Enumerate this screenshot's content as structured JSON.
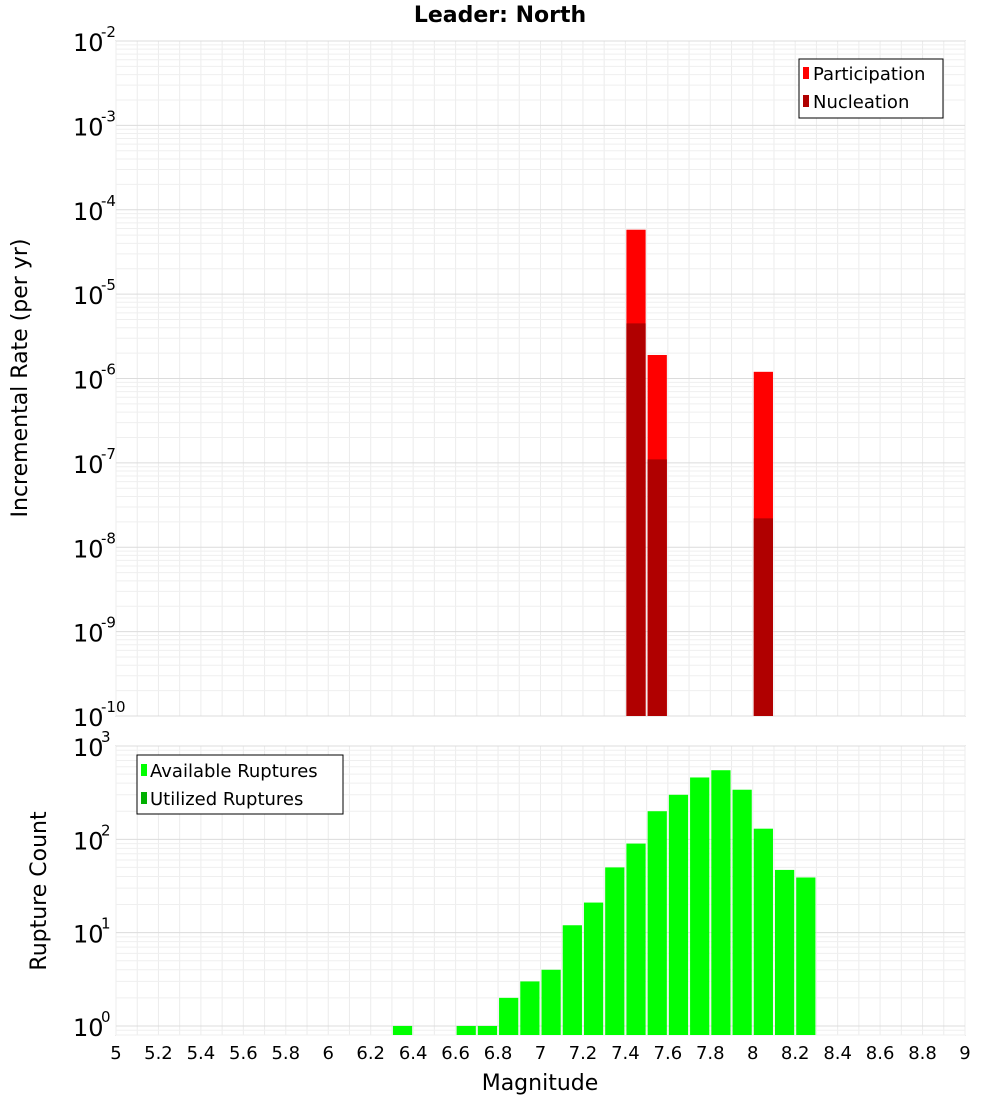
{
  "chart_data": [
    {
      "type": "bar",
      "panel": "top",
      "title": "Leader: North",
      "ylabel": "Incremental Rate (per yr)",
      "yscale": "log",
      "ylim": [
        1e-10,
        0.01
      ],
      "ytick_exponents": [
        "-10",
        "-9",
        "-8",
        "-7",
        "-6",
        "-5",
        "-4",
        "-3",
        "-2"
      ],
      "ytick_base": "10",
      "x": [
        7.45,
        7.55,
        8.05
      ],
      "bin_width": 0.1,
      "series": [
        {
          "name": "Participation",
          "color": "#ff0000",
          "values": [
            5.8e-05,
            1.9e-06,
            1.2e-06
          ]
        },
        {
          "name": "Nucleation",
          "color": "#b00000",
          "values": [
            4.5e-06,
            1.1e-07,
            2.2e-08
          ]
        }
      ],
      "legend": "top-right"
    },
    {
      "type": "bar",
      "panel": "bottom",
      "ylabel": "Rupture Count",
      "xlabel": "Magnitude",
      "yscale": "log",
      "ylim": [
        0.8,
        1000
      ],
      "ytick_exponents": [
        "0",
        "1",
        "2",
        "3"
      ],
      "ytick_base": "10",
      "xlim": [
        5,
        9
      ],
      "xticks": [
        "5",
        "5.2",
        "5.4",
        "5.6",
        "5.8",
        "6",
        "6.2",
        "6.4",
        "6.6",
        "6.8",
        "7",
        "7.2",
        "7.4",
        "7.6",
        "7.8",
        "8",
        "8.2",
        "8.4",
        "8.6",
        "8.8",
        "9"
      ],
      "bin_width": 0.1,
      "series": [
        {
          "name": "Available Ruptures",
          "color": "#00ff00",
          "x": [
            6.35,
            6.65,
            6.75,
            6.85,
            6.95,
            7.05,
            7.15,
            7.25,
            7.35,
            7.45,
            7.55,
            7.65,
            7.75,
            7.85,
            7.95,
            8.05,
            8.15,
            8.25
          ],
          "values": [
            1,
            1,
            1,
            2,
            3,
            4,
            12,
            21,
            50,
            90,
            200,
            300,
            460,
            550,
            340,
            130,
            47,
            39
          ]
        },
        {
          "name": "Utilized Ruptures",
          "color": "#00b000",
          "x": [
            7.45,
            7.55,
            8.05
          ],
          "values": [
            1,
            1,
            1
          ]
        }
      ],
      "legend": "top-left"
    }
  ]
}
